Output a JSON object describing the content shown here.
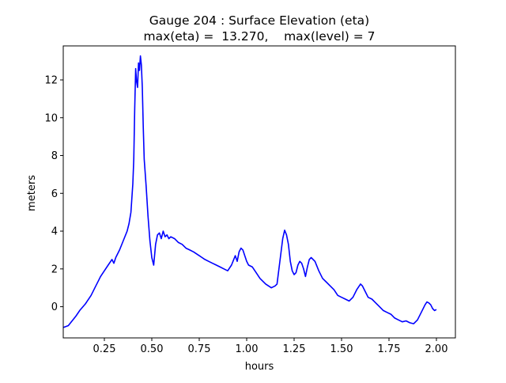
{
  "chart_data": {
    "type": "line",
    "title": "Gauge 204 : Surface Elevation (eta)",
    "subtitle": "max(eta) =  13.270,    max(level) = 7",
    "xlabel": "hours",
    "ylabel": "meters",
    "xlim": [
      0.0333,
      2.1
    ],
    "ylim": [
      -1.65,
      13.8
    ],
    "xticks": [
      0.25,
      0.5,
      0.75,
      1.0,
      1.25,
      1.5,
      1.75,
      2.0
    ],
    "xtick_labels": [
      "0.25",
      "0.50",
      "0.75",
      "1.00",
      "1.25",
      "1.50",
      "1.75",
      "2.00"
    ],
    "yticks": [
      0,
      2,
      4,
      6,
      8,
      10,
      12
    ],
    "ytick_labels": [
      "0",
      "2",
      "4",
      "6",
      "8",
      "10",
      "12"
    ],
    "grid": false,
    "series": [
      {
        "name": "eta",
        "color": "#0000ff",
        "x": [
          0.0333,
          0.06,
          0.08,
          0.1,
          0.12,
          0.15,
          0.18,
          0.2,
          0.22,
          0.23,
          0.25,
          0.27,
          0.29,
          0.3,
          0.31,
          0.33,
          0.35,
          0.37,
          0.38,
          0.39,
          0.4,
          0.405,
          0.41,
          0.415,
          0.42,
          0.425,
          0.43,
          0.435,
          0.44,
          0.445,
          0.45,
          0.455,
          0.46,
          0.47,
          0.48,
          0.49,
          0.5,
          0.51,
          0.52,
          0.53,
          0.54,
          0.55,
          0.56,
          0.57,
          0.58,
          0.59,
          0.6,
          0.62,
          0.64,
          0.66,
          0.68,
          0.7,
          0.72,
          0.75,
          0.78,
          0.8,
          0.82,
          0.84,
          0.86,
          0.88,
          0.9,
          0.92,
          0.94,
          0.95,
          0.96,
          0.97,
          0.98,
          0.99,
          1.0,
          1.01,
          1.03,
          1.05,
          1.07,
          1.1,
          1.13,
          1.15,
          1.16,
          1.18,
          1.19,
          1.2,
          1.21,
          1.22,
          1.23,
          1.24,
          1.25,
          1.26,
          1.27,
          1.28,
          1.29,
          1.3,
          1.31,
          1.32,
          1.33,
          1.34,
          1.36,
          1.38,
          1.4,
          1.42,
          1.44,
          1.46,
          1.48,
          1.5,
          1.52,
          1.54,
          1.56,
          1.58,
          1.6,
          1.61,
          1.62,
          1.63,
          1.64,
          1.66,
          1.68,
          1.7,
          1.72,
          1.74,
          1.76,
          1.78,
          1.8,
          1.82,
          1.84,
          1.86,
          1.88,
          1.9,
          1.92,
          1.94,
          1.95,
          1.96,
          1.97,
          1.98,
          1.99,
          2.0
        ],
        "values": [
          -1.1,
          -1.0,
          -0.75,
          -0.5,
          -0.2,
          0.15,
          0.6,
          1.0,
          1.4,
          1.6,
          1.9,
          2.2,
          2.5,
          2.3,
          2.6,
          3.0,
          3.5,
          4.0,
          4.4,
          5.0,
          6.5,
          7.8,
          10.5,
          12.6,
          11.9,
          11.6,
          12.9,
          12.5,
          13.27,
          12.8,
          11.6,
          9.5,
          7.8,
          6.4,
          4.8,
          3.5,
          2.6,
          2.2,
          3.3,
          3.8,
          3.9,
          3.6,
          4.0,
          3.7,
          3.8,
          3.6,
          3.7,
          3.6,
          3.4,
          3.3,
          3.1,
          3.0,
          2.9,
          2.7,
          2.5,
          2.4,
          2.3,
          2.2,
          2.1,
          2.0,
          1.9,
          2.2,
          2.7,
          2.4,
          2.9,
          3.1,
          3.0,
          2.7,
          2.4,
          2.2,
          2.1,
          1.8,
          1.5,
          1.2,
          1.0,
          1.1,
          1.2,
          2.8,
          3.6,
          4.05,
          3.8,
          3.3,
          2.4,
          1.9,
          1.7,
          1.8,
          2.2,
          2.4,
          2.3,
          2.0,
          1.6,
          2.1,
          2.5,
          2.6,
          2.4,
          1.9,
          1.5,
          1.3,
          1.1,
          0.9,
          0.6,
          0.5,
          0.4,
          0.3,
          0.5,
          0.9,
          1.2,
          1.1,
          0.9,
          0.7,
          0.5,
          0.4,
          0.2,
          0.0,
          -0.2,
          -0.3,
          -0.4,
          -0.6,
          -0.7,
          -0.8,
          -0.75,
          -0.85,
          -0.9,
          -0.7,
          -0.3,
          0.1,
          0.25,
          0.2,
          0.1,
          -0.1,
          -0.2,
          -0.15
        ]
      }
    ]
  }
}
